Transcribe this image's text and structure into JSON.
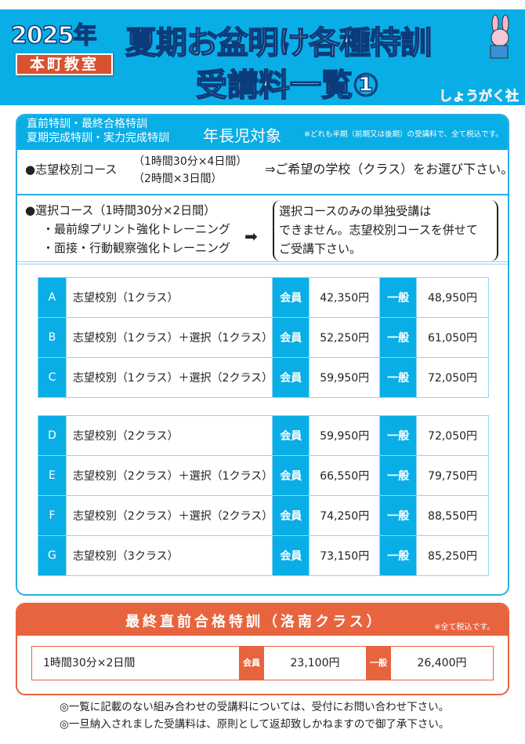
{
  "header": {
    "year": "2025年",
    "school": "本町教室",
    "title_line1": "夏期お盆明け各種特訓",
    "title_line2": "受講料一覧①",
    "logo": "しょうがく社",
    "colors": {
      "blue": "#0aaee6",
      "orange": "#e8643e",
      "red": "#d8522f"
    }
  },
  "main": {
    "head": {
      "line1": "直前特訓・最終合格特訓",
      "line2": "夏期完成特訓・実力完成特訓",
      "target": "年長児対象",
      "note": "※どれも半期（前期又は後期）の受講料で、全て税込です。"
    },
    "course1": {
      "label": "●志望校別コース",
      "time1": "（1時間30分×4日間）",
      "time2": "（2時間×3日間）",
      "instruction": "⇒ご希望の学校（クラス）をお選び下さい。"
    },
    "course2": {
      "label": "●選択コース（1時間30分×2日間）",
      "item1": "・最前線プリント強化トレーニング",
      "item2": "・面接・行動観察強化トレーニング",
      "note_line1": "選択コースのみの単独受講は",
      "note_line2": "できません。志望校別コースを併せて",
      "note_line3": "ご受講下さい。"
    },
    "member_label": "会員",
    "general_label": "一般",
    "table1": [
      {
        "id": "A",
        "name": "志望校別（1クラス）",
        "member": "42,350円",
        "general": "48,950円"
      },
      {
        "id": "B",
        "name": "志望校別（1クラス）＋選択（1クラス）",
        "member": "52,250円",
        "general": "61,050円"
      },
      {
        "id": "C",
        "name": "志望校別（1クラス）＋選択（2クラス）",
        "member": "59,950円",
        "general": "72,050円"
      }
    ],
    "table2": [
      {
        "id": "D",
        "name": "志望校別（2クラス）",
        "member": "59,950円",
        "general": "72,050円"
      },
      {
        "id": "E",
        "name": "志望校別（2クラス）＋選択（1クラス）",
        "member": "66,550円",
        "general": "79,750円"
      },
      {
        "id": "F",
        "name": "志望校別（2クラス）＋選択（2クラス）",
        "member": "74,250円",
        "general": "88,550円"
      },
      {
        "id": "G",
        "name": "志望校別（3クラス）",
        "member": "73,150円",
        "general": "85,250円"
      }
    ]
  },
  "final": {
    "title": "最終直前合格特訓（洛南クラス）",
    "note": "※全て税込です。",
    "duration": "1時間30分×2日間",
    "member_label": "会員",
    "member": "23,100円",
    "general_label": "一般",
    "general": "26,400円"
  },
  "notes": [
    "◎一覧に記載のない組み合わせの受講料については、受付にお問い合わせ下さい。",
    "◎一旦納入されました受講料は、原則として返却致しかねますので御了承下さい。"
  ]
}
